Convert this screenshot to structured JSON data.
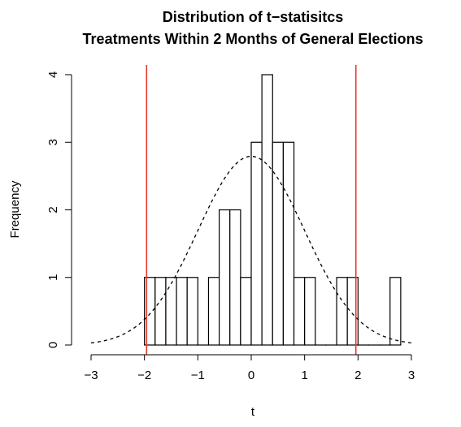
{
  "chart_data": {
    "type": "bar",
    "title": "Distribution of t−statisitcs",
    "subtitle": "Treatments Within 2 Months of General Elections",
    "xlabel": "t",
    "ylabel": "Frequency",
    "xlim": [
      -3,
      3
    ],
    "ylim": [
      0,
      4
    ],
    "x_ticks": [
      -3,
      -2,
      -1,
      0,
      1,
      2,
      3
    ],
    "x_tick_labels": [
      "−3",
      "−2",
      "−1",
      "0",
      "1",
      "2",
      "3"
    ],
    "y_ticks": [
      0,
      1,
      2,
      3,
      4
    ],
    "y_tick_labels": [
      "0",
      "1",
      "2",
      "3",
      "4"
    ],
    "bin_width": 0.2,
    "bins": [
      {
        "x0": -2.0,
        "x1": -1.8,
        "count": 1
      },
      {
        "x0": -1.8,
        "x1": -1.6,
        "count": 1
      },
      {
        "x0": -1.6,
        "x1": -1.4,
        "count": 1
      },
      {
        "x0": -1.4,
        "x1": -1.2,
        "count": 1
      },
      {
        "x0": -1.2,
        "x1": -1.0,
        "count": 1
      },
      {
        "x0": -1.0,
        "x1": -0.8,
        "count": 0
      },
      {
        "x0": -0.8,
        "x1": -0.6,
        "count": 1
      },
      {
        "x0": -0.6,
        "x1": -0.4,
        "count": 2
      },
      {
        "x0": -0.4,
        "x1": -0.2,
        "count": 2
      },
      {
        "x0": -0.2,
        "x1": 0.0,
        "count": 1
      },
      {
        "x0": 0.0,
        "x1": 0.2,
        "count": 3
      },
      {
        "x0": 0.2,
        "x1": 0.4,
        "count": 4
      },
      {
        "x0": 0.4,
        "x1": 0.6,
        "count": 3
      },
      {
        "x0": 0.6,
        "x1": 0.8,
        "count": 3
      },
      {
        "x0": 0.8,
        "x1": 1.0,
        "count": 1
      },
      {
        "x0": 1.0,
        "x1": 1.2,
        "count": 1
      },
      {
        "x0": 1.2,
        "x1": 1.4,
        "count": 0
      },
      {
        "x0": 1.4,
        "x1": 1.6,
        "count": 0
      },
      {
        "x0": 1.6,
        "x1": 1.8,
        "count": 1
      },
      {
        "x0": 1.8,
        "x1": 2.0,
        "count": 1
      },
      {
        "x0": 2.0,
        "x1": 2.2,
        "count": 0
      },
      {
        "x0": 2.2,
        "x1": 2.4,
        "count": 0
      },
      {
        "x0": 2.4,
        "x1": 2.6,
        "count": 0
      },
      {
        "x0": 2.6,
        "x1": 2.8,
        "count": 1
      }
    ],
    "reference_lines": [
      {
        "x": -1.96,
        "color": "#e8382b"
      },
      {
        "x": 1.96,
        "color": "#e8382b"
      }
    ],
    "density_curve": {
      "distribution": "normal",
      "mean": 0,
      "sd": 1,
      "scale": 7,
      "line_style": "dashed",
      "x_range": [
        -3,
        3
      ]
    },
    "grid": false,
    "colors": {
      "bar_fill": "#ffffff",
      "bar_stroke": "#000000",
      "reference_line": "#e8382b",
      "curve": "#000000"
    }
  }
}
